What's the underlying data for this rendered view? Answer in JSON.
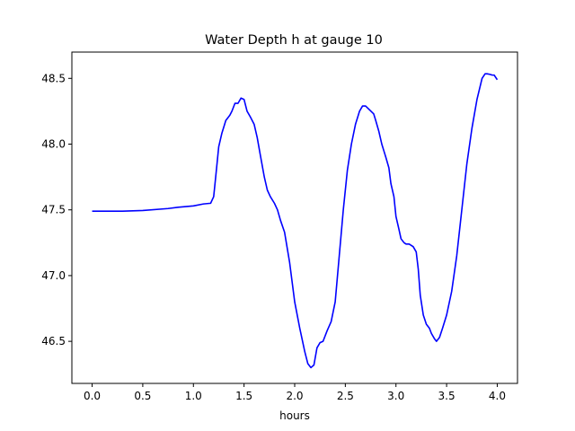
{
  "chart_data": {
    "type": "line",
    "title": "Water Depth h at gauge 10",
    "xlabel": "hours",
    "ylabel": "",
    "xlim": [
      -0.2,
      4.2
    ],
    "ylim": [
      46.18,
      48.7
    ],
    "xticks": [
      0.0,
      0.5,
      1.0,
      1.5,
      2.0,
      2.5,
      3.0,
      3.5,
      4.0
    ],
    "xtick_labels": [
      "0.0",
      "0.5",
      "1.0",
      "1.5",
      "2.0",
      "2.5",
      "3.0",
      "3.5",
      "4.0"
    ],
    "yticks": [
      46.5,
      47.0,
      47.5,
      48.0,
      48.5
    ],
    "ytick_labels": [
      "46.5",
      "47.0",
      "47.5",
      "48.0",
      "48.5"
    ],
    "grid": false,
    "legend": "none",
    "series": [
      {
        "color": "#0000ff",
        "x": [
          0.0,
          0.3,
          0.5,
          0.75,
          0.85,
          1.0,
          1.1,
          1.17,
          1.2,
          1.22,
          1.25,
          1.28,
          1.32,
          1.36,
          1.38,
          1.41,
          1.44,
          1.47,
          1.5,
          1.53,
          1.56,
          1.6,
          1.63,
          1.66,
          1.7,
          1.73,
          1.76,
          1.8,
          1.83,
          1.86,
          1.9,
          1.95,
          2.0,
          2.05,
          2.1,
          2.13,
          2.16,
          2.19,
          2.22,
          2.25,
          2.28,
          2.32,
          2.36,
          2.4,
          2.44,
          2.48,
          2.52,
          2.56,
          2.6,
          2.64,
          2.67,
          2.7,
          2.74,
          2.78,
          2.8,
          2.83,
          2.86,
          2.88,
          2.9,
          2.93,
          2.95,
          2.98,
          3.0,
          3.03,
          3.05,
          3.08,
          3.1,
          3.13,
          3.17,
          3.2,
          3.22,
          3.24,
          3.27,
          3.3,
          3.33,
          3.35,
          3.38,
          3.4,
          3.43,
          3.46,
          3.5,
          3.55,
          3.6,
          3.65,
          3.7,
          3.75,
          3.8,
          3.85,
          3.88,
          3.9,
          3.93,
          3.95,
          3.97,
          4.0
        ],
        "y": [
          47.49,
          47.49,
          47.495,
          47.51,
          47.52,
          47.53,
          47.545,
          47.55,
          47.6,
          47.75,
          47.98,
          48.08,
          48.18,
          48.22,
          48.25,
          48.31,
          48.31,
          48.35,
          48.34,
          48.25,
          48.21,
          48.15,
          48.05,
          47.92,
          47.75,
          47.65,
          47.6,
          47.55,
          47.5,
          47.42,
          47.33,
          47.1,
          46.8,
          46.6,
          46.42,
          46.33,
          46.3,
          46.32,
          46.45,
          46.49,
          46.5,
          46.58,
          46.65,
          46.8,
          47.15,
          47.5,
          47.8,
          48.0,
          48.15,
          48.25,
          48.29,
          48.29,
          48.26,
          48.23,
          48.18,
          48.1,
          48.0,
          47.95,
          47.9,
          47.82,
          47.7,
          47.6,
          47.45,
          47.35,
          47.28,
          47.25,
          47.24,
          47.24,
          47.22,
          47.18,
          47.05,
          46.85,
          46.7,
          46.63,
          46.6,
          46.56,
          46.52,
          46.5,
          46.53,
          46.6,
          46.7,
          46.88,
          47.15,
          47.5,
          47.85,
          48.12,
          48.34,
          48.5,
          48.535,
          48.535,
          48.53,
          48.525,
          48.525,
          48.49
        ]
      }
    ]
  }
}
